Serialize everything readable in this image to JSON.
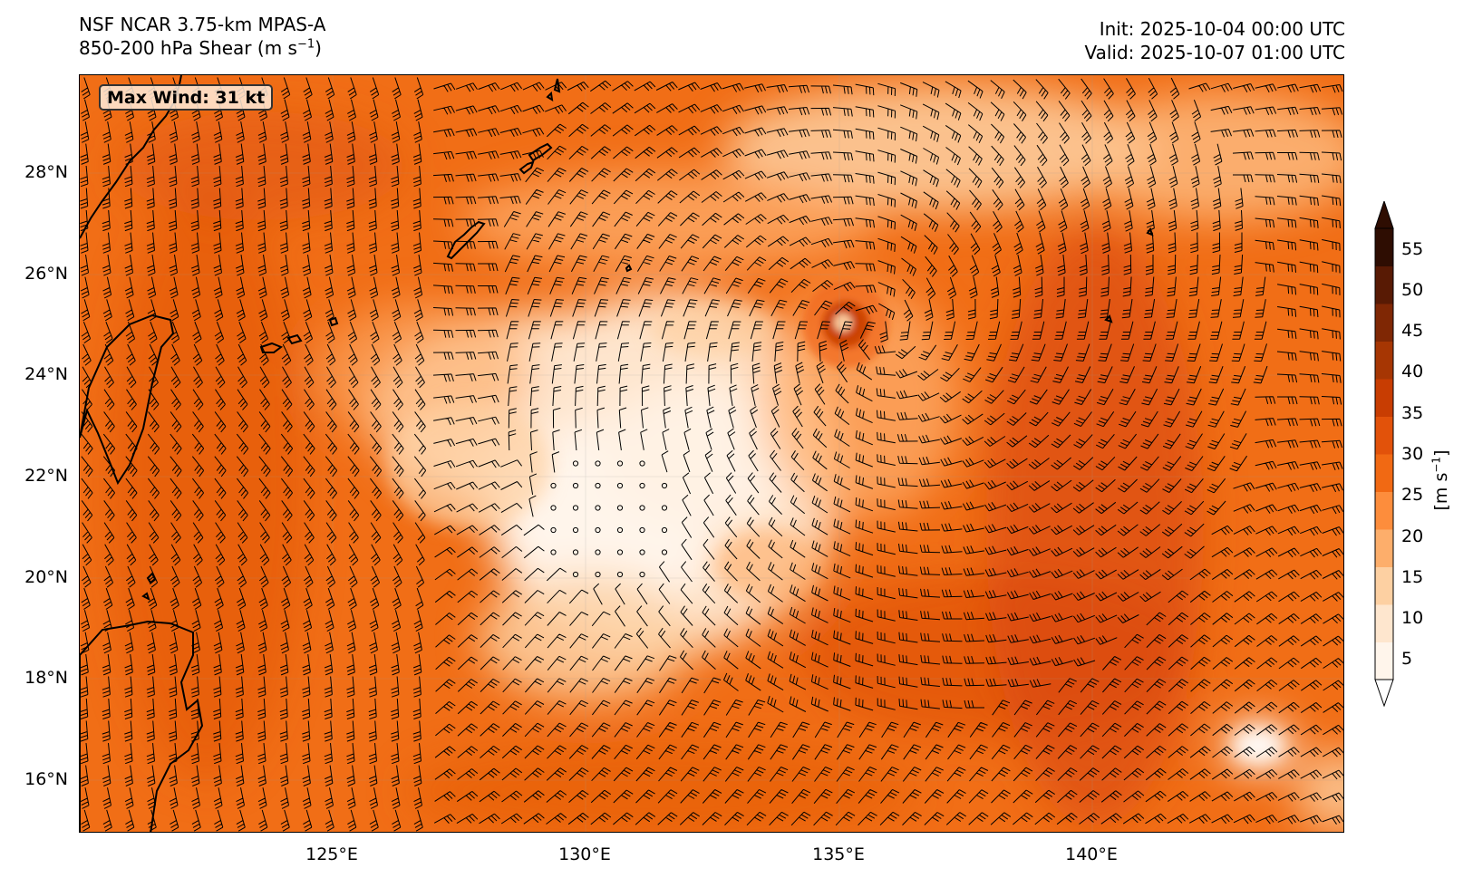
{
  "header": {
    "model": "NSF NCAR 3.75-km MPAS-A",
    "field_prefix": "850-200 hPa Shear (m s",
    "field_exp": "−1",
    "field_suffix": ")",
    "init": "Init: 2025-10-04 00:00 UTC",
    "valid": "Valid: 2025-10-07 01:00 UTC"
  },
  "annotation": {
    "max_wind": "Max Wind: 31 kt"
  },
  "map": {
    "lon_range": [
      120,
      145
    ],
    "lat_range": [
      15,
      30
    ],
    "lat_labels": [
      "16°N",
      "18°N",
      "20°N",
      "22°N",
      "24°N",
      "26°N",
      "28°N"
    ],
    "lon_labels": [
      "125°E",
      "130°E",
      "135°E",
      "140°E"
    ],
    "storm_center": {
      "lon": 135.8,
      "lat": 24.9
    }
  },
  "colorbar": {
    "label_prefix": "[m s",
    "label_exp": "−1",
    "label_suffix": "]",
    "ticks": [
      "5",
      "10",
      "15",
      "20",
      "25",
      "30",
      "35",
      "40",
      "45",
      "50",
      "55"
    ],
    "range": [
      2.5,
      57.5
    ],
    "colors": [
      "#fff5eb",
      "#fee6ce",
      "#fdd0a2",
      "#fdae6b",
      "#fd8d3c",
      "#f16913",
      "#e2520a",
      "#c83d02",
      "#a63603",
      "#7f2704",
      "#581a04",
      "#2e0d02"
    ]
  }
}
